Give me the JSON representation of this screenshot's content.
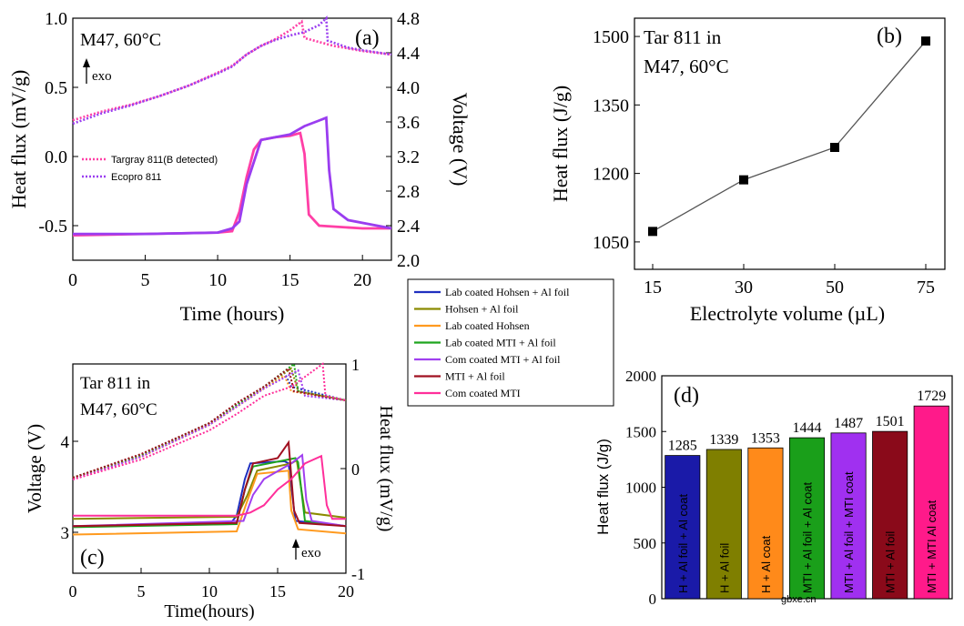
{
  "chart_data": [
    {
      "panel": "(a)",
      "type": "line",
      "annotation": "M47, 60°C",
      "exo_label": "exo",
      "xlabel": "Time (hours)",
      "ylabel": "Heat flux (mV/g)",
      "ylabel_right": "Voltage (V)",
      "xlim": [
        0,
        22
      ],
      "ylim": [
        -0.75,
        1.0
      ],
      "ylim_right": [
        2.0,
        4.8
      ],
      "xticks": [
        "0",
        "5",
        "10",
        "15",
        "20"
      ],
      "yticks": [
        "-0.5",
        "0.0",
        "0.5",
        "1.0"
      ],
      "yticks_right": [
        "2.0",
        "2.4",
        "2.8",
        "3.2",
        "3.6",
        "4.0",
        "4.4",
        "4.8"
      ],
      "legend": [
        "Targray 811(B detected)",
        "Ecopro 811"
      ],
      "colors": {
        "targray": "#ff3fa6",
        "ecopro": "#9a3df0"
      },
      "series": [
        {
          "name": "Targray 811(B detected) voltage",
          "axis": "right",
          "x": [
            0,
            2,
            4,
            6,
            8,
            10,
            11,
            12,
            13,
            14,
            15,
            15.8,
            16,
            18,
            20,
            22
          ],
          "values": [
            3.62,
            3.72,
            3.8,
            3.9,
            4.02,
            4.17,
            4.25,
            4.38,
            4.48,
            4.56,
            4.66,
            4.76,
            4.57,
            4.48,
            4.42,
            4.38
          ]
        },
        {
          "name": "Ecopro 811 voltage",
          "axis": "right",
          "x": [
            0,
            2,
            4,
            6,
            8,
            10,
            11,
            12,
            13,
            14,
            15,
            16,
            17,
            17.5,
            17.6,
            19,
            20,
            22
          ],
          "values": [
            3.58,
            3.7,
            3.79,
            3.9,
            4.02,
            4.16,
            4.24,
            4.38,
            4.48,
            4.55,
            4.6,
            4.64,
            4.72,
            4.8,
            4.54,
            4.46,
            4.43,
            4.38
          ]
        },
        {
          "name": "Targray 811(B detected) heat flux",
          "axis": "left",
          "x": [
            0,
            5,
            10,
            11,
            11.5,
            12,
            12.5,
            13,
            14,
            15,
            15.7,
            16,
            16.3,
            17,
            20,
            22
          ],
          "values": [
            -0.57,
            -0.56,
            -0.55,
            -0.54,
            -0.4,
            -0.15,
            0.05,
            0.12,
            0.14,
            0.15,
            0.17,
            0.02,
            -0.42,
            -0.5,
            -0.52,
            -0.52
          ]
        },
        {
          "name": "Ecopro 811 heat flux",
          "axis": "left",
          "x": [
            0,
            5,
            10,
            11,
            11.5,
            12,
            13,
            14,
            15,
            16,
            17,
            17.5,
            17.7,
            18,
            19,
            22
          ],
          "values": [
            -0.56,
            -0.56,
            -0.55,
            -0.52,
            -0.47,
            -0.2,
            0.12,
            0.14,
            0.16,
            0.22,
            0.26,
            0.28,
            -0.1,
            -0.38,
            -0.46,
            -0.52
          ]
        }
      ]
    },
    {
      "panel": "(b)",
      "type": "line",
      "annotation_line1": "Tar 811 in",
      "annotation_line2": "M47, 60°C",
      "xlabel": "Electrolyte volume (µL)",
      "ylabel": "Heat flux (J/g)",
      "categories": [
        "15",
        "30",
        "50",
        "75"
      ],
      "values": [
        1073,
        1186,
        1257,
        1490
      ],
      "ylim": [
        990,
        1540
      ],
      "yticks": [
        "1050",
        "1200",
        "1350",
        "1500"
      ],
      "colors": {
        "line": "#555555",
        "marker": "#000000"
      }
    },
    {
      "panel": "(c)",
      "type": "line",
      "annotation_line1": "Tar 811 in",
      "annotation_line2": "M47, 60°C",
      "exo_label": "exo",
      "xlabel": "Time(hours)",
      "ylabel": "Voltage (V)",
      "ylabel_right": "Heat flux (mV/g)",
      "xlim": [
        0,
        20
      ],
      "ylim": [
        2.55,
        4.85
      ],
      "ylim_right": [
        -1.0,
        1.0
      ],
      "xticks": [
        "0",
        "5",
        "10",
        "15",
        "20"
      ],
      "yticks": [
        "3",
        "4"
      ],
      "yticks_right": [
        "-1",
        "0",
        "1"
      ],
      "legend": [
        "Lab coated Hohsen + Al foil",
        "Hohsen + Al foil",
        "Lab coated Hohsen",
        "Lab coated MTI + Al foil",
        "Com coated MTI + Al foil",
        "MTI + Al foil",
        "Com coated MTI"
      ],
      "colors": [
        "#1f2fbf",
        "#8a8a00",
        "#ff9a1f",
        "#1fa51f",
        "#a040f0",
        "#a01020",
        "#ff2f9a"
      ],
      "series": [
        {
          "name": "Lab coated Hohsen + Al foil",
          "voltage_x": [
            0,
            5,
            10,
            12,
            14,
            15.5,
            16,
            20
          ],
          "voltage": [
            3.6,
            3.85,
            4.2,
            4.4,
            4.6,
            4.75,
            4.6,
            4.45
          ],
          "flux_x": [
            0,
            11.5,
            12,
            12.6,
            13,
            15.5,
            15.8,
            16.3,
            20
          ],
          "flux": [
            -0.55,
            -0.53,
            -0.45,
            -0.1,
            0.05,
            0.07,
            0.05,
            -0.5,
            -0.55
          ]
        },
        {
          "name": "Hohsen + Al foil",
          "voltage_x": [
            0,
            5,
            10,
            12,
            14,
            16,
            16.5,
            20
          ],
          "voltage": [
            3.6,
            3.85,
            4.2,
            4.4,
            4.6,
            4.8,
            4.55,
            4.45
          ],
          "flux_x": [
            0,
            12,
            12.8,
            13.5,
            16,
            16.4,
            17,
            20
          ],
          "flux": [
            -0.48,
            -0.46,
            -0.25,
            -0.02,
            0.05,
            0.08,
            -0.42,
            -0.47
          ]
        },
        {
          "name": "Lab coated Hohsen",
          "voltage_x": [
            0,
            5,
            10,
            12,
            14,
            15.5,
            16,
            20
          ],
          "voltage": [
            3.6,
            3.83,
            4.18,
            4.38,
            4.58,
            4.72,
            4.55,
            4.45
          ],
          "flux_x": [
            0,
            12,
            12.8,
            13.5,
            15.8,
            16,
            16.5,
            20
          ],
          "flux": [
            -0.63,
            -0.6,
            -0.3,
            -0.05,
            -0.02,
            -0.4,
            -0.58,
            -0.62
          ]
        },
        {
          "name": "Lab coated MTI + Al foil",
          "voltage_x": [
            0,
            5,
            10,
            12,
            14,
            16.2,
            16.5,
            20
          ],
          "voltage": [
            3.6,
            3.85,
            4.2,
            4.4,
            4.6,
            4.85,
            4.55,
            4.45
          ],
          "flux_x": [
            0,
            12,
            12.6,
            13.2,
            16.3,
            16.5,
            17,
            20
          ],
          "flux": [
            -0.56,
            -0.53,
            -0.2,
            0.02,
            0.1,
            0.06,
            -0.5,
            -0.55
          ]
        },
        {
          "name": "Com coated MTI + Al foil",
          "voltage_x": [
            0,
            5,
            10,
            12,
            14,
            16.5,
            17,
            20
          ],
          "voltage": [
            3.58,
            3.83,
            4.18,
            4.38,
            4.58,
            4.78,
            4.5,
            4.45
          ],
          "flux_x": [
            0,
            12.5,
            13.2,
            14,
            16,
            16.8,
            17.1,
            17.5,
            20
          ],
          "flux": [
            -0.55,
            -0.5,
            -0.25,
            -0.1,
            0.05,
            0.13,
            -0.3,
            -0.5,
            -0.55
          ]
        },
        {
          "name": "MTI + Al foil",
          "voltage_x": [
            0,
            5,
            10,
            12,
            14,
            15.8,
            16.2,
            20
          ],
          "voltage": [
            3.6,
            3.86,
            4.2,
            4.42,
            4.6,
            4.8,
            4.55,
            4.45
          ],
          "flux_x": [
            0,
            12,
            12.6,
            13.2,
            15,
            15.8,
            16.2,
            16.6,
            20
          ],
          "flux": [
            -0.55,
            -0.52,
            -0.2,
            0.05,
            0.1,
            0.25,
            -0.4,
            -0.52,
            -0.55
          ]
        },
        {
          "name": "Com coated MTI",
          "voltage_x": [
            0,
            5,
            10,
            12,
            14,
            16,
            18.3,
            18.5,
            20
          ],
          "voltage": [
            3.58,
            3.8,
            4.12,
            4.3,
            4.5,
            4.6,
            4.85,
            4.5,
            4.45
          ],
          "flux_x": [
            0,
            12,
            13,
            14,
            15,
            16,
            17,
            18.2,
            18.6,
            19,
            20
          ],
          "flux": [
            -0.45,
            -0.45,
            -0.42,
            -0.35,
            -0.2,
            -0.1,
            0.05,
            0.12,
            -0.35,
            -0.48,
            -0.48
          ]
        }
      ]
    },
    {
      "panel": "(d)",
      "type": "bar",
      "ylabel": "Heat flux (J/g)",
      "categories": [
        "H + Al foil + Al coat",
        "H + Al foil",
        "H + Al coat",
        "MTI + Al foil + Al coat",
        "MTI + Al foil + MTI coat",
        "MTI + Al foil",
        "MTI + MTI Al coat"
      ],
      "values": [
        1285,
        1339,
        1353,
        1444,
        1487,
        1501,
        1729
      ],
      "value_labels": [
        "1285",
        "1339",
        "1353",
        "1444",
        "1487",
        "1501",
        "1729"
      ],
      "ylim": [
        0,
        2000
      ],
      "yticks": [
        "0",
        "500",
        "1000",
        "1500",
        "2000"
      ],
      "colors": [
        "#1a1aa8",
        "#7f7f00",
        "#ff8a1a",
        "#1a9f1a",
        "#a030f0",
        "#8a0a1a",
        "#ff1a8a"
      ]
    }
  ],
  "watermark": "gbxe.cn"
}
